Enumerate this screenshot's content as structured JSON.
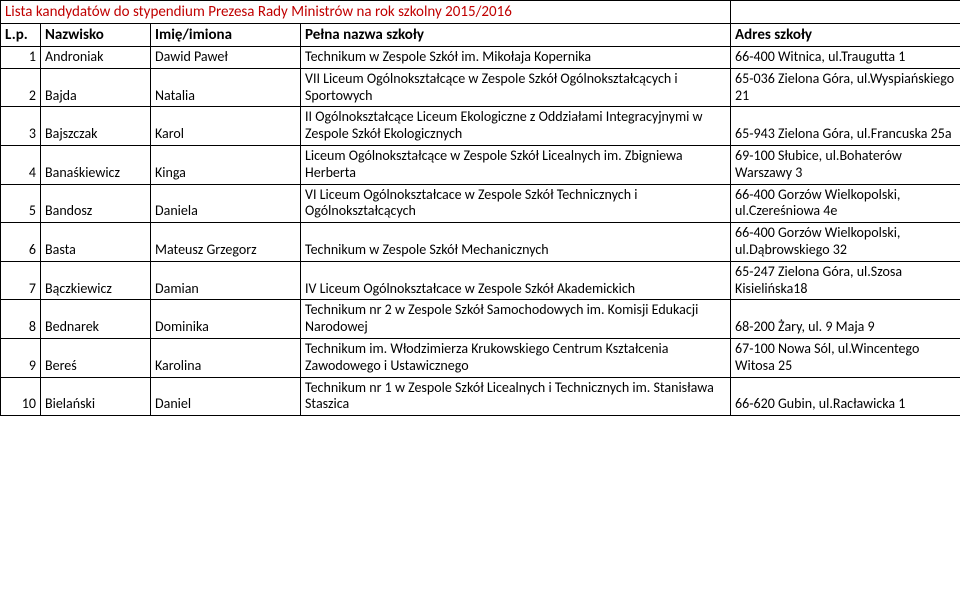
{
  "title": "Lista kandydatów do stypendium Prezesa Rady Ministrów na rok szkolny 2015/2016",
  "columns": {
    "lp": "L.p.",
    "nazwisko": "Nazwisko",
    "imiona": "Imię/imiona",
    "szkola": "Pełna nazwa szkoły",
    "adres": "Adres szkoły"
  },
  "rows": [
    {
      "lp": "1",
      "nazwisko": "Androniak",
      "imiona": "Dawid Paweł",
      "szkola": "Technikum w Zespole Szkół im. Mikołaja Kopernika",
      "adres": "66-400 Witnica, ul.Traugutta 1"
    },
    {
      "lp": "2",
      "nazwisko": "Bajda",
      "imiona": "Natalia",
      "szkola": "VII Liceum Ogólnokształcące w Zespole Szkół Ogólnokształcących i Sportowych",
      "adres": "65-036 Zielona Góra, ul.Wyspiańskiego 21"
    },
    {
      "lp": "3",
      "nazwisko": "Bajszczak",
      "imiona": "Karol",
      "szkola": "II Ogólnokształcące Liceum Ekologiczne z Oddziałami Integracyjnymi w Zespole Szkół Ekologicznych",
      "adres": "65-943 Zielona Góra, ul.Francuska 25a"
    },
    {
      "lp": "4",
      "nazwisko": "Banaśkiewicz",
      "imiona": "Kinga",
      "szkola": "Liceum Ogólnokształcące w Zespole Szkół Licealnych im. Zbigniewa Herberta",
      "adres": "69-100 Słubice, ul.Bohaterów Warszawy 3"
    },
    {
      "lp": "5",
      "nazwisko": "Bandosz",
      "imiona": "Daniela",
      "szkola": "VI Liceum Ogólnokształcace w Zespole Szkół Technicznych i Ogólnokształcących",
      "adres": "66-400 Gorzów Wielkopolski, ul.Czereśniowa 4e"
    },
    {
      "lp": "6",
      "nazwisko": "Basta",
      "imiona": "Mateusz Grzegorz",
      "szkola": "Technikum w Zespole Szkół Mechanicznych",
      "adres": "66-400 Gorzów Wielkopolski, ul.Dąbrowskiego 32"
    },
    {
      "lp": "7",
      "nazwisko": "Bączkiewicz",
      "imiona": "Damian",
      "szkola": "IV Liceum Ogólnokształcace w Zespole Szkół Akademickich",
      "adres": "65-247 Zielona Góra, ul.Szosa Kisielińska18"
    },
    {
      "lp": "8",
      "nazwisko": "Bednarek",
      "imiona": "Dominika",
      "szkola": "Technikum nr 2 w Zespole Szkół Samochodowych im. Komisji Edukacji Narodowej",
      "adres": "68-200 Żary, ul. 9 Maja 9"
    },
    {
      "lp": "9",
      "nazwisko": "Bereś",
      "imiona": "Karolina",
      "szkola": "Technikum im. Włodzimierza Krukowskiego Centrum Kształcenia Zawodowego i Ustawicznego",
      "adres": "67-100 Nowa Sól, ul.Wincentego Witosa 25"
    },
    {
      "lp": "10",
      "nazwisko": "Bielański",
      "imiona": "Daniel",
      "szkola": "Technikum nr 1 w Zespole Szkół Licealnych i Technicznych im. Stanisława Staszica",
      "adres": "66-620 Gubin, ul.Racławicka 1"
    }
  ],
  "colors": {
    "title": "#c00000",
    "border": "#000000",
    "background": "#ffffff"
  },
  "font": {
    "family": "Calibri",
    "body_size_pt": 11,
    "title_size_pt": 12
  }
}
